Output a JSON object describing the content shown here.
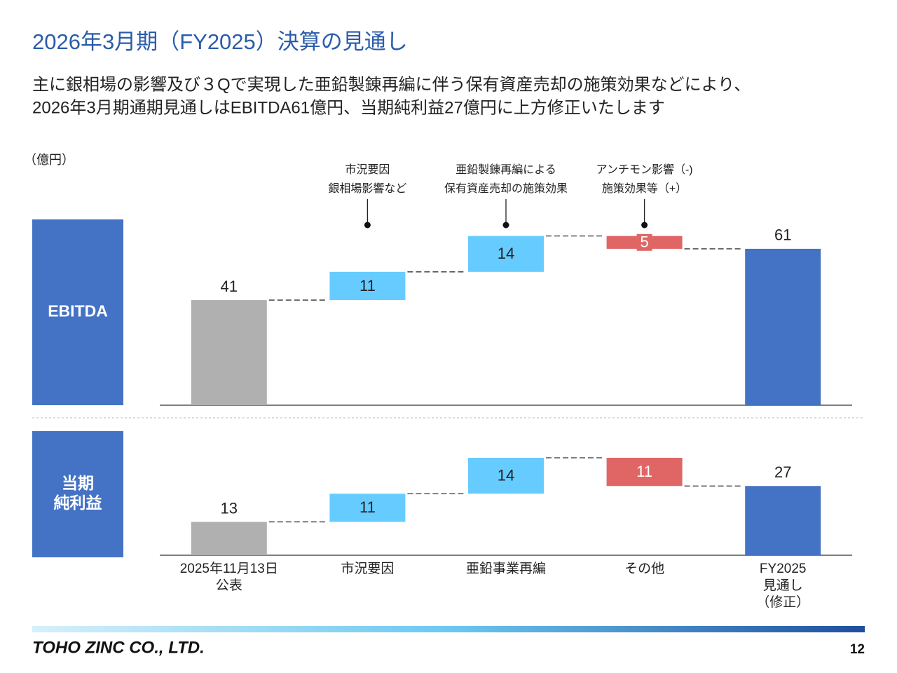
{
  "header": {
    "title": "2026年3月期（FY2025）決算の見通し",
    "subtitle_lines": [
      "主に銀相場の影響及び３Qで実現した亜鉛製錬再編に伴う保有資産売却の施策効果などにより、",
      "2026年3月期通期見通しはEBITDA61億円、当期純利益27億円に上方修正いたします"
    ],
    "unit": "（億円）"
  },
  "chart_data": [
    {
      "type": "waterfall",
      "title_lines": [
        "EBITDA"
      ],
      "values": [
        41,
        11,
        14,
        5,
        61
      ],
      "kinds": [
        "start",
        "increase",
        "increase",
        "decrease",
        "end"
      ],
      "colors": {
        "start": "#b0b0b0",
        "increase": "#66ccff",
        "decrease": "#e06666",
        "end": "#4472c4"
      },
      "ylim": [
        0,
        70
      ],
      "annotations": [
        null,
        [
          "市況要因",
          "銀相場影響など"
        ],
        [
          "亜鉛製錬再編による",
          "保有資産売却の施策効果"
        ],
        [
          "アンチモン影響（-)",
          "施策効果等（+）"
        ],
        null
      ]
    },
    {
      "type": "waterfall",
      "title_lines": [
        "当期",
        "純利益"
      ],
      "categories": [
        [
          "2025年11月13日",
          "公表"
        ],
        [
          "市況要因"
        ],
        [
          "亜鉛事業再編"
        ],
        [
          "その他"
        ],
        [
          "FY2025",
          "見通し",
          "（修正）"
        ]
      ],
      "values": [
        13,
        11,
        14,
        11,
        27
      ],
      "kinds": [
        "start",
        "increase",
        "increase",
        "decrease",
        "end"
      ],
      "colors": {
        "start": "#b0b0b0",
        "increase": "#66ccff",
        "decrease": "#e06666",
        "end": "#4472c4"
      },
      "ylim": [
        0,
        40
      ]
    }
  ],
  "footer": {
    "company": "TOHO ZINC CO., LTD.",
    "page": 12
  }
}
